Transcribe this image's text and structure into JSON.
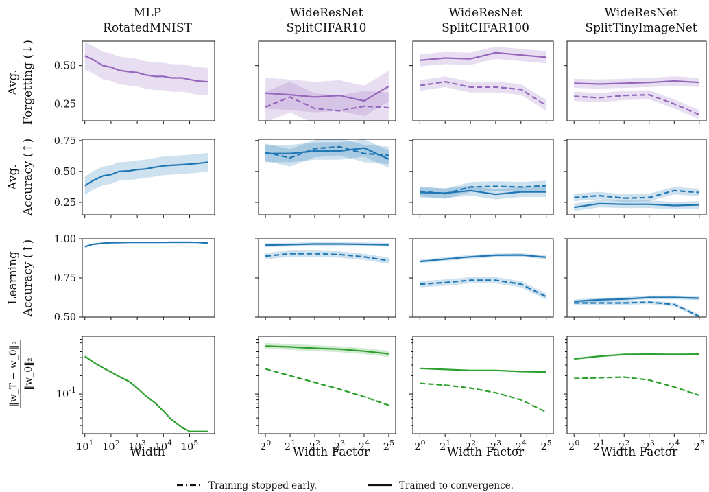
{
  "figure": {
    "columns": [
      {
        "title_line1": "MLP",
        "title_line2": "RotatedMNIST"
      },
      {
        "title_line1": "WideResNet",
        "title_line2": "SplitCIFAR10"
      },
      {
        "title_line1": "WideResNet",
        "title_line2": "SplitCIFAR100"
      },
      {
        "title_line1": "WideResNet",
        "title_line2": "SplitTinyImageNet"
      }
    ],
    "rows": [
      {
        "label_line1": "Avg.",
        "label_line2": "Forgetting (↓)"
      },
      {
        "label_line1": "Avg.",
        "label_line2": "Accuracy (↑)"
      },
      {
        "label_line1": "Learning",
        "label_line2": "Accuracy (↑)"
      },
      {
        "label_line1": "‖w_T − w_0‖₂",
        "label_line2": "‖w_0‖₂"
      }
    ],
    "xlabels": [
      "Width",
      "Width Factor",
      "Width Factor",
      "Width Factor"
    ],
    "legend": {
      "dashed": "Training stopped early.",
      "solid": "Trained to convergence."
    },
    "colors": {
      "purple": "#9467bd",
      "blue": "#1f77b4",
      "green": "#2ca02c"
    }
  },
  "chart_data": {
    "type": "line",
    "x_mlp": [
      10,
      20,
      50,
      100,
      200,
      500,
      1000,
      2000,
      5000,
      10000,
      20000,
      50000,
      100000,
      200000,
      500000
    ],
    "x_wrn": [
      1,
      2,
      4,
      8,
      16,
      32
    ],
    "x_mlp_ticks": [
      "10^1",
      "10^2",
      "10^3",
      "10^4",
      "10^5"
    ],
    "x_wrn_ticks": [
      "2^0",
      "2^1",
      "2^2",
      "2^3",
      "2^4",
      "2^5"
    ],
    "row_ylims": [
      [
        0.14,
        0.66
      ],
      [
        0.15,
        0.76
      ],
      [
        0.5,
        1.0
      ],
      [
        0.022,
        0.9
      ]
    ],
    "row_yticks": [
      [
        "0.25",
        "0.50"
      ],
      [
        "0.25",
        "0.50",
        "0.75"
      ],
      [
        "0.50",
        "0.75",
        "1.00"
      ],
      [
        "10^-1"
      ]
    ],
    "panels": [
      [
        {
          "solid": [
            0.565,
            0.54,
            0.5,
            0.49,
            0.47,
            0.46,
            0.455,
            0.44,
            0.43,
            0.43,
            0.42,
            0.42,
            0.41,
            0.4,
            0.395
          ],
          "solid_band": 0.09
        },
        {
          "solid": [
            0.32,
            0.31,
            0.295,
            0.305,
            0.27,
            0.365
          ],
          "solid_band": 0.1,
          "dashed": [
            0.23,
            0.295,
            0.22,
            0.205,
            0.235,
            0.225
          ],
          "dashed_band": 0.1
        },
        {
          "solid": [
            0.535,
            0.55,
            0.545,
            0.585,
            0.57,
            0.555
          ],
          "solid_band": 0.04,
          "dashed": [
            0.37,
            0.395,
            0.36,
            0.36,
            0.345,
            0.24
          ],
          "dashed_band": 0.035
        },
        {
          "solid": [
            0.385,
            0.38,
            0.385,
            0.39,
            0.4,
            0.39
          ],
          "solid_band": 0.03,
          "dashed": [
            0.3,
            0.29,
            0.305,
            0.31,
            0.25,
            0.18
          ],
          "dashed_band": 0.03
        }
      ],
      [
        {
          "solid": [
            0.385,
            0.425,
            0.465,
            0.475,
            0.5,
            0.505,
            0.515,
            0.52,
            0.535,
            0.545,
            0.55,
            0.555,
            0.56,
            0.565,
            0.575
          ],
          "solid_band": 0.075
        },
        {
          "solid": [
            0.645,
            0.645,
            0.665,
            0.665,
            0.69,
            0.6
          ],
          "solid_band": 0.07,
          "dashed": [
            0.655,
            0.61,
            0.685,
            0.7,
            0.645,
            0.63
          ],
          "dashed_band": 0.07
        },
        {
          "solid": [
            0.33,
            0.325,
            0.345,
            0.315,
            0.335,
            0.335
          ],
          "solid_band": 0.04,
          "dashed": [
            0.34,
            0.32,
            0.375,
            0.38,
            0.375,
            0.385
          ],
          "dashed_band": 0.04
        },
        {
          "solid": [
            0.21,
            0.24,
            0.235,
            0.235,
            0.225,
            0.23
          ],
          "solid_band": 0.03,
          "dashed": [
            0.29,
            0.305,
            0.285,
            0.29,
            0.345,
            0.33
          ],
          "dashed_band": 0.03
        }
      ],
      [
        {
          "solid": [
            0.95,
            0.965,
            0.972,
            0.975,
            0.976,
            0.977,
            0.977,
            0.977,
            0.977,
            0.977,
            0.978,
            0.978,
            0.978,
            0.977,
            0.972
          ],
          "solid_band": 0.005
        },
        {
          "solid": [
            0.96,
            0.963,
            0.967,
            0.967,
            0.965,
            0.962
          ],
          "solid_band": 0.012,
          "dashed": [
            0.89,
            0.905,
            0.905,
            0.9,
            0.885,
            0.86
          ],
          "dashed_band": 0.02
        },
        {
          "solid": [
            0.855,
            0.87,
            0.885,
            0.895,
            0.897,
            0.882
          ],
          "solid_band": 0.012,
          "dashed": [
            0.71,
            0.72,
            0.735,
            0.735,
            0.71,
            0.63
          ],
          "dashed_band": 0.02
        },
        {
          "solid": [
            0.6,
            0.61,
            0.615,
            0.625,
            0.625,
            0.62
          ],
          "solid_band": 0.012,
          "dashed": [
            0.59,
            0.59,
            0.59,
            0.595,
            0.58,
            0.505
          ],
          "dashed_band": 0.012
        }
      ],
      [
        {
          "solid": [
            0.42,
            0.34,
            0.27,
            0.23,
            0.195,
            0.16,
            0.125,
            0.095,
            0.07,
            0.052,
            0.038,
            0.028,
            0.024,
            0.024,
            0.024
          ],
          "solid_band": 0.0
        },
        {
          "solid": [
            0.62,
            0.6,
            0.57,
            0.55,
            0.51,
            0.46
          ],
          "solid_band": 0.06,
          "dashed": [
            0.26,
            0.2,
            0.155,
            0.12,
            0.09,
            0.065
          ],
          "dashed_band": 0.01
        },
        {
          "solid": [
            0.265,
            0.255,
            0.245,
            0.245,
            0.235,
            0.23
          ],
          "solid_band": 0.015,
          "dashed": [
            0.15,
            0.14,
            0.125,
            0.105,
            0.08,
            0.05
          ],
          "dashed_band": 0.005
        },
        {
          "solid": [
            0.38,
            0.42,
            0.45,
            0.455,
            0.45,
            0.455
          ],
          "solid_band": 0.02,
          "dashed": [
            0.18,
            0.185,
            0.19,
            0.17,
            0.13,
            0.095
          ],
          "dashed_band": 0.008
        }
      ]
    ]
  }
}
